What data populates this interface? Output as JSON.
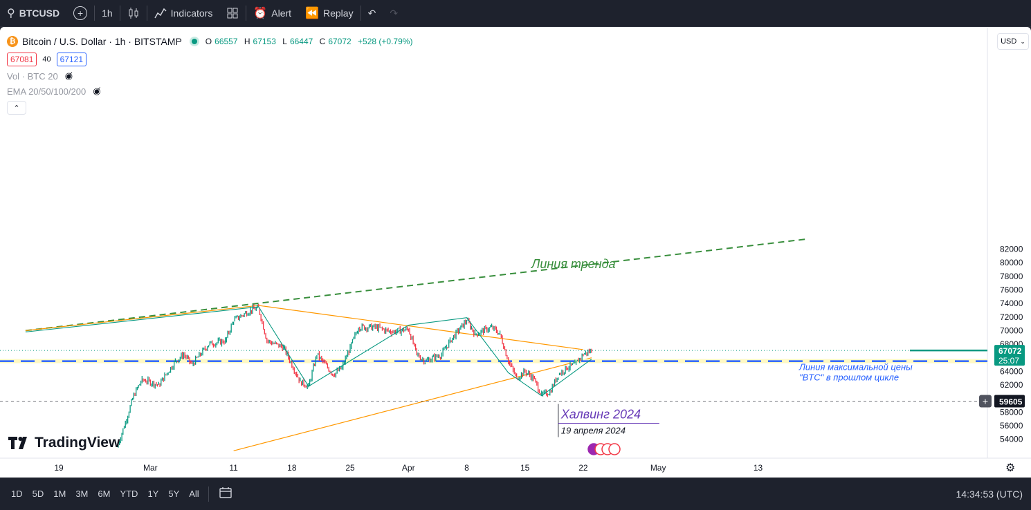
{
  "toolbar": {
    "symbol": "BTCUSD",
    "interval": "1h",
    "indicators": "Indicators",
    "alert": "Alert",
    "replay": "Replay"
  },
  "legend": {
    "title": "Bitcoin / U.S. Dollar · 1h · BITSTAMP",
    "open_label": "O",
    "open": "66557",
    "high_label": "H",
    "high": "67153",
    "low_label": "L",
    "low": "66447",
    "close_label": "C",
    "close": "67072",
    "change": "+528 (+0.79%)",
    "bid": "67081",
    "spread": "40",
    "ask": "67121",
    "volume": "Vol · BTC 20",
    "ema": "EMA 20/50/100/200"
  },
  "price_axis": {
    "currency": "USD",
    "last_price": "67072",
    "countdown": "25:07",
    "crosshair_price": "59605"
  },
  "branding": "TradingView",
  "bottom": {
    "ranges": [
      "1D",
      "5D",
      "1M",
      "3M",
      "6M",
      "YTD",
      "1Y",
      "5Y",
      "All"
    ],
    "clock": "14:34:53 (UTC)"
  },
  "colors": {
    "up": "#089981",
    "down": "#f23645",
    "trendline": "#388e3c",
    "orange": "#ff9800",
    "blue_line": "#2962ff",
    "purple": "#673ab7"
  },
  "chart_data": {
    "type": "candlestick",
    "title": "Bitcoin / U.S. Dollar · 1h · BITSTAMP",
    "ylim": [
      52800,
      83200
    ],
    "y_ticks": [
      54000,
      56000,
      58000,
      60000,
      62000,
      64000,
      66000,
      68000,
      70000,
      72000,
      74000,
      76000,
      78000,
      80000,
      82000
    ],
    "x_ticks": [
      {
        "label": "19",
        "date": "2024-02-19"
      },
      {
        "label": "Mar",
        "date": "2024-03-01"
      },
      {
        "label": "11",
        "date": "2024-03-11"
      },
      {
        "label": "18",
        "date": "2024-03-18"
      },
      {
        "label": "25",
        "date": "2024-03-25"
      },
      {
        "label": "Apr",
        "date": "2024-04-01"
      },
      {
        "label": "8",
        "date": "2024-04-08"
      },
      {
        "label": "15",
        "date": "2024-04-15"
      },
      {
        "label": "22",
        "date": "2024-04-22"
      },
      {
        "label": "May",
        "date": "2024-05-01"
      },
      {
        "label": "13",
        "date": "2024-05-13"
      }
    ],
    "price_path": [
      {
        "date": "2024-02-26",
        "price": 52800
      },
      {
        "date": "2024-02-27",
        "price": 56500
      },
      {
        "date": "2024-02-28",
        "price": 60500
      },
      {
        "date": "2024-02-29",
        "price": 62800
      },
      {
        "date": "2024-03-02",
        "price": 62000
      },
      {
        "date": "2024-03-04",
        "price": 65500
      },
      {
        "date": "2024-03-05",
        "price": 66500
      },
      {
        "date": "2024-03-06",
        "price": 65000
      },
      {
        "date": "2024-03-08",
        "price": 68000
      },
      {
        "date": "2024-03-10",
        "price": 68500
      },
      {
        "date": "2024-03-11",
        "price": 71500
      },
      {
        "date": "2024-03-13",
        "price": 73000
      },
      {
        "date": "2024-03-14",
        "price": 73300
      },
      {
        "date": "2024-03-15",
        "price": 68500
      },
      {
        "date": "2024-03-17",
        "price": 67500
      },
      {
        "date": "2024-03-19",
        "price": 62500
      },
      {
        "date": "2024-03-20",
        "price": 61800
      },
      {
        "date": "2024-03-21",
        "price": 66500
      },
      {
        "date": "2024-03-23",
        "price": 63500
      },
      {
        "date": "2024-03-24",
        "price": 64500
      },
      {
        "date": "2024-03-25",
        "price": 67500
      },
      {
        "date": "2024-03-26",
        "price": 70500
      },
      {
        "date": "2024-03-28",
        "price": 70500
      },
      {
        "date": "2024-03-30",
        "price": 69800
      },
      {
        "date": "2024-04-01",
        "price": 70200
      },
      {
        "date": "2024-04-02",
        "price": 66500
      },
      {
        "date": "2024-04-03",
        "price": 65500
      },
      {
        "date": "2024-04-05",
        "price": 66500
      },
      {
        "date": "2024-04-06",
        "price": 68500
      },
      {
        "date": "2024-04-08",
        "price": 71500
      },
      {
        "date": "2024-04-09",
        "price": 69500
      },
      {
        "date": "2024-04-11",
        "price": 70500
      },
      {
        "date": "2024-04-12",
        "price": 69500
      },
      {
        "date": "2024-04-13",
        "price": 65500
      },
      {
        "date": "2024-04-14",
        "price": 63000
      },
      {
        "date": "2024-04-15",
        "price": 64000
      },
      {
        "date": "2024-04-16",
        "price": 63000
      },
      {
        "date": "2024-04-17",
        "price": 60500
      },
      {
        "date": "2024-04-18",
        "price": 61000
      },
      {
        "date": "2024-04-19",
        "price": 63500
      },
      {
        "date": "2024-04-20",
        "price": 64500
      },
      {
        "date": "2024-04-21",
        "price": 65000
      },
      {
        "date": "2024-04-22",
        "price": 66500
      },
      {
        "date": "2024-04-23",
        "price": 67072
      }
    ],
    "annotations": {
      "trend_label": "Линия тренда",
      "max_line_label_1": "Линия максимальной цены",
      "max_line_label_2": "\"BTC\" в прошлом цикле",
      "max_price_level": 65500,
      "halving_title": "Халвинг 2024",
      "halving_date": "19 апреля 2024",
      "halving_price": 59605
    },
    "drawings": {
      "trend_line": {
        "from": {
          "date": "2024-02-15",
          "price": 70000
        },
        "to": {
          "date": "2024-05-19",
          "price": 83500
        }
      },
      "orange_upper": {
        "from": {
          "date": "2024-02-15",
          "price": 70000
        },
        "via": {
          "date": "2024-03-14",
          "price": 73700
        },
        "to": {
          "date": "2024-04-22",
          "price": 67200
        }
      },
      "orange_lower": {
        "from": {
          "date": "2024-03-11",
          "price": 52300
        },
        "to": {
          "date": "2024-04-23",
          "price": 66000
        }
      }
    }
  }
}
